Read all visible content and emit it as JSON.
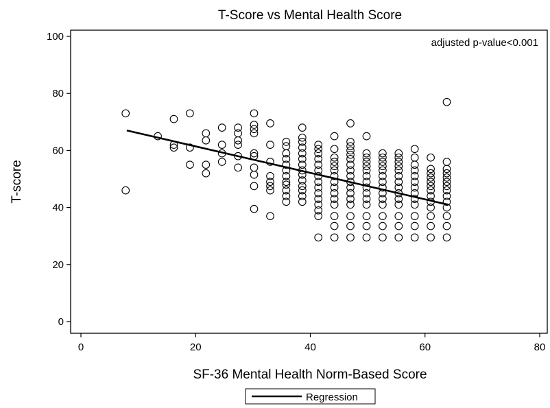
{
  "chart_data": {
    "type": "scatter",
    "title": "T-Score vs Mental Health Score",
    "xlabel": "SF-36 Mental Health Norm-Based Score",
    "ylabel": "T-score",
    "xlim": [
      0,
      80
    ],
    "ylim": [
      0,
      100
    ],
    "x_ticks": [
      0,
      20,
      40,
      60,
      80
    ],
    "y_ticks": [
      0,
      20,
      40,
      60,
      80,
      100
    ],
    "grid": false,
    "annotation": "adjusted p-value<0.001",
    "legend": {
      "position": "bottom-center",
      "entries": [
        "Regression"
      ]
    },
    "regression": {
      "x": [
        8,
        64
      ],
      "y": [
        67,
        41
      ]
    },
    "series": [
      {
        "points": [
          [
            7.8,
            73
          ],
          [
            7.8,
            46
          ],
          [
            13.4,
            65
          ],
          [
            16.2,
            71
          ],
          [
            16.2,
            62
          ],
          [
            16.2,
            61
          ],
          [
            19,
            73
          ],
          [
            19,
            61
          ],
          [
            19,
            55
          ],
          [
            21.8,
            66
          ],
          [
            21.8,
            63.5
          ],
          [
            21.8,
            55
          ],
          [
            21.8,
            52
          ],
          [
            24.6,
            68
          ],
          [
            24.6,
            62
          ],
          [
            24.6,
            59
          ],
          [
            24.6,
            56
          ],
          [
            27.4,
            68
          ],
          [
            27.4,
            66
          ],
          [
            27.4,
            63.5
          ],
          [
            27.4,
            62
          ],
          [
            27.4,
            58
          ],
          [
            27.4,
            54
          ],
          [
            30.2,
            73
          ],
          [
            30.2,
            69
          ],
          [
            30.2,
            67.5
          ],
          [
            30.2,
            66
          ],
          [
            30.2,
            59
          ],
          [
            30.2,
            58
          ],
          [
            30.2,
            54
          ],
          [
            30.2,
            51.5
          ],
          [
            30.2,
            47.5
          ],
          [
            30.2,
            39.5
          ],
          [
            33,
            69.5
          ],
          [
            33,
            62
          ],
          [
            33,
            56
          ],
          [
            33,
            51
          ],
          [
            33,
            49
          ],
          [
            33,
            47.5
          ],
          [
            33,
            46
          ],
          [
            33,
            37
          ],
          [
            35.8,
            63
          ],
          [
            35.8,
            61.5
          ],
          [
            35.8,
            59
          ],
          [
            35.8,
            57
          ],
          [
            35.8,
            55
          ],
          [
            35.8,
            53
          ],
          [
            35.8,
            51
          ],
          [
            35.8,
            49
          ],
          [
            35.8,
            48
          ],
          [
            35.8,
            46
          ],
          [
            35.8,
            44
          ],
          [
            35.8,
            42
          ],
          [
            38.6,
            68
          ],
          [
            38.6,
            64.5
          ],
          [
            38.6,
            63
          ],
          [
            38.6,
            61
          ],
          [
            38.6,
            59
          ],
          [
            38.6,
            57
          ],
          [
            38.6,
            55
          ],
          [
            38.6,
            53
          ],
          [
            38.6,
            51.5
          ],
          [
            38.6,
            49.5
          ],
          [
            38.6,
            47.5
          ],
          [
            38.6,
            46
          ],
          [
            38.6,
            44
          ],
          [
            38.6,
            42
          ],
          [
            41.4,
            62
          ],
          [
            41.4,
            60.5
          ],
          [
            41.4,
            59
          ],
          [
            41.4,
            57
          ],
          [
            41.4,
            55
          ],
          [
            41.4,
            53
          ],
          [
            41.4,
            51
          ],
          [
            41.4,
            49
          ],
          [
            41.4,
            47
          ],
          [
            41.4,
            45
          ],
          [
            41.4,
            43
          ],
          [
            41.4,
            41
          ],
          [
            41.4,
            39
          ],
          [
            41.4,
            37
          ],
          [
            41.4,
            29.5
          ],
          [
            44.2,
            65
          ],
          [
            44.2,
            60.5
          ],
          [
            44.2,
            57.5
          ],
          [
            44.2,
            56
          ],
          [
            44.2,
            54.5
          ],
          [
            44.2,
            53
          ],
          [
            44.2,
            51
          ],
          [
            44.2,
            49
          ],
          [
            44.2,
            47
          ],
          [
            44.2,
            45
          ],
          [
            44.2,
            43
          ],
          [
            44.2,
            41
          ],
          [
            44.2,
            37
          ],
          [
            44.2,
            33.5
          ],
          [
            44.2,
            29.5
          ],
          [
            47,
            69.5
          ],
          [
            47,
            63
          ],
          [
            47,
            61.5
          ],
          [
            47,
            60
          ],
          [
            47,
            58.5
          ],
          [
            47,
            57
          ],
          [
            47,
            55
          ],
          [
            47,
            53
          ],
          [
            47,
            51
          ],
          [
            47,
            49
          ],
          [
            47,
            47
          ],
          [
            47,
            45
          ],
          [
            47,
            43
          ],
          [
            47,
            41
          ],
          [
            47,
            37
          ],
          [
            47,
            33.5
          ],
          [
            47,
            29.5
          ],
          [
            49.8,
            65
          ],
          [
            49.8,
            59
          ],
          [
            49.8,
            57.5
          ],
          [
            49.8,
            56
          ],
          [
            49.8,
            54.5
          ],
          [
            49.8,
            53
          ],
          [
            49.8,
            51
          ],
          [
            49.8,
            49
          ],
          [
            49.8,
            47
          ],
          [
            49.8,
            45
          ],
          [
            49.8,
            43
          ],
          [
            49.8,
            41
          ],
          [
            49.8,
            37
          ],
          [
            49.8,
            33.5
          ],
          [
            49.8,
            29.5
          ],
          [
            52.6,
            59
          ],
          [
            52.6,
            57.5
          ],
          [
            52.6,
            56
          ],
          [
            52.6,
            54.5
          ],
          [
            52.6,
            53
          ],
          [
            52.6,
            51
          ],
          [
            52.6,
            49
          ],
          [
            52.6,
            47
          ],
          [
            52.6,
            45
          ],
          [
            52.6,
            43
          ],
          [
            52.6,
            41
          ],
          [
            52.6,
            37
          ],
          [
            52.6,
            33.5
          ],
          [
            52.6,
            29.5
          ],
          [
            55.4,
            59
          ],
          [
            55.4,
            57.5
          ],
          [
            55.4,
            56
          ],
          [
            55.4,
            54.5
          ],
          [
            55.4,
            53
          ],
          [
            55.4,
            51
          ],
          [
            55.4,
            49
          ],
          [
            55.4,
            47
          ],
          [
            55.4,
            45
          ],
          [
            55.4,
            43
          ],
          [
            55.4,
            41
          ],
          [
            55.4,
            37
          ],
          [
            55.4,
            33.5
          ],
          [
            55.4,
            29.5
          ],
          [
            58.2,
            60.5
          ],
          [
            58.2,
            57.5
          ],
          [
            58.2,
            55
          ],
          [
            58.2,
            53
          ],
          [
            58.2,
            51
          ],
          [
            58.2,
            49
          ],
          [
            58.2,
            47
          ],
          [
            58.2,
            45
          ],
          [
            58.2,
            43
          ],
          [
            58.2,
            41
          ],
          [
            58.2,
            37
          ],
          [
            58.2,
            33.5
          ],
          [
            58.2,
            29.5
          ],
          [
            61,
            57.5
          ],
          [
            61,
            53.5
          ],
          [
            61,
            52
          ],
          [
            61,
            50.5
          ],
          [
            61,
            49
          ],
          [
            61,
            47.5
          ],
          [
            61,
            46
          ],
          [
            61,
            44
          ],
          [
            61,
            42
          ],
          [
            61,
            40
          ],
          [
            61,
            37
          ],
          [
            61,
            33.5
          ],
          [
            61,
            29.5
          ],
          [
            63.8,
            77
          ],
          [
            63.8,
            56
          ],
          [
            63.8,
            53.5
          ],
          [
            63.8,
            52
          ],
          [
            63.8,
            50.5
          ],
          [
            63.8,
            49
          ],
          [
            63.8,
            47.5
          ],
          [
            63.8,
            46
          ],
          [
            63.8,
            44
          ],
          [
            63.8,
            42
          ],
          [
            63.8,
            40
          ],
          [
            63.8,
            37
          ],
          [
            63.8,
            33.5
          ],
          [
            63.8,
            29.5
          ]
        ]
      }
    ]
  }
}
